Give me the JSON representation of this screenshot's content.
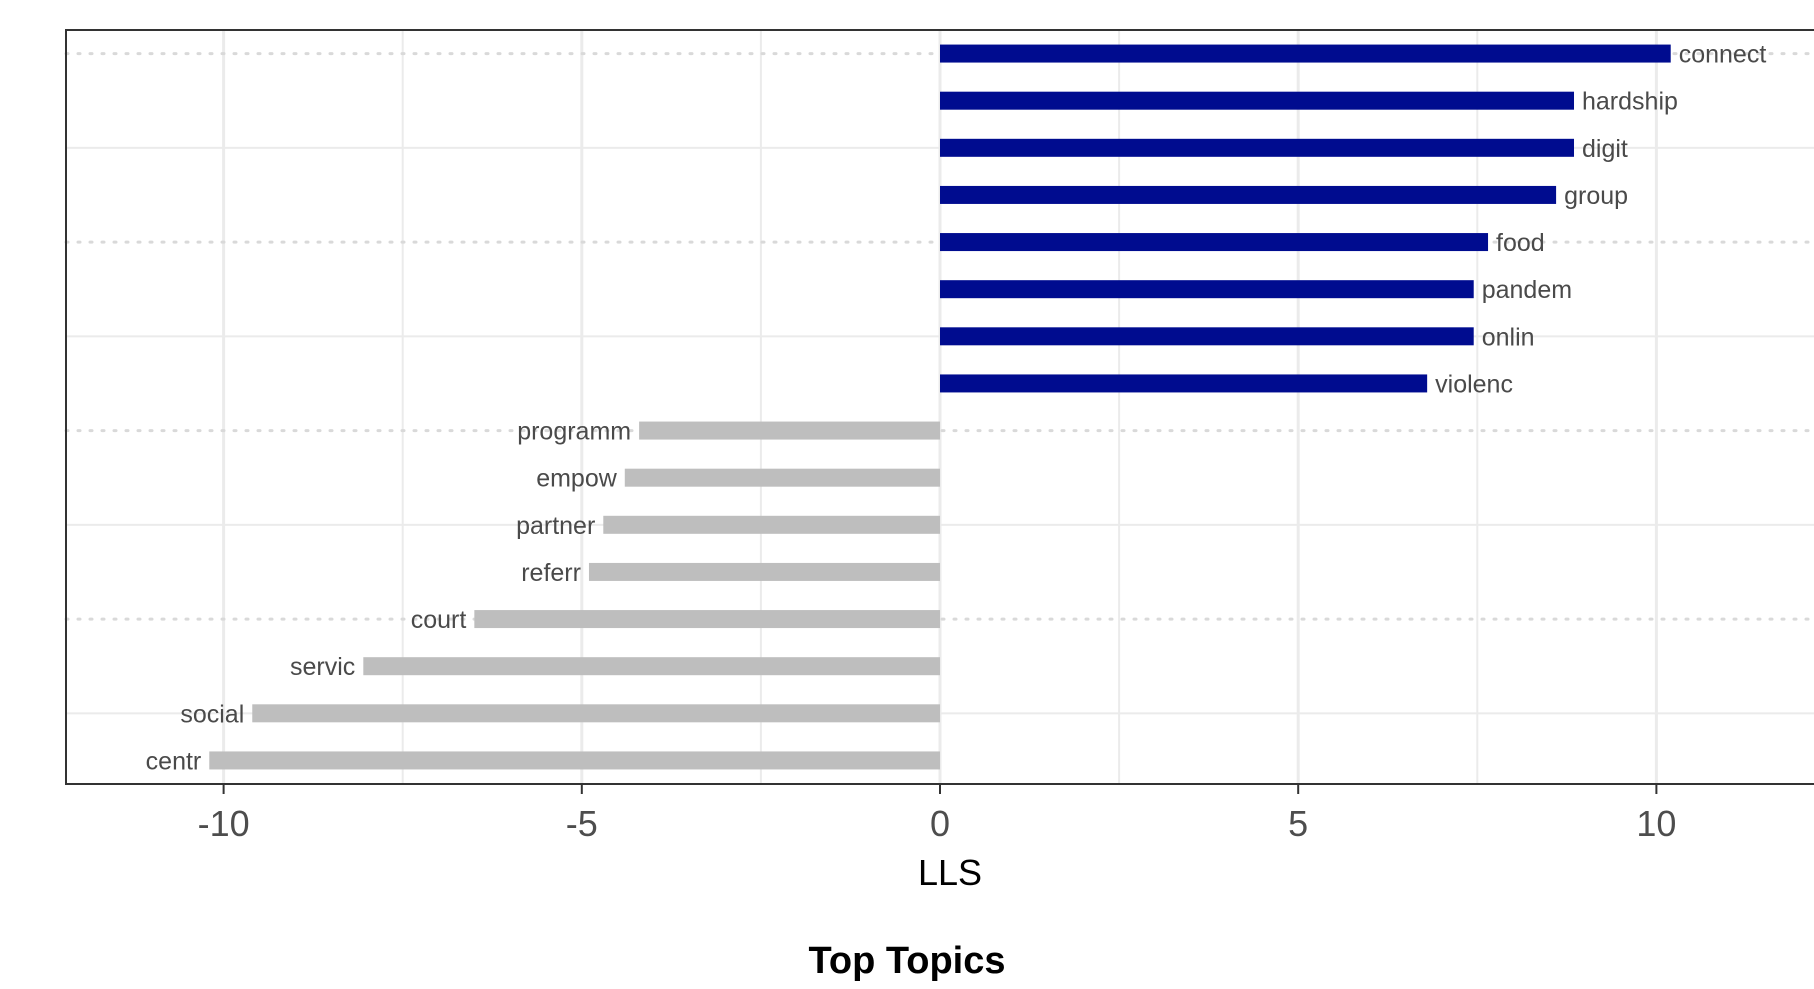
{
  "caption": "Top Topics",
  "chart_data": {
    "type": "bar",
    "orientation": "horizontal",
    "title": "",
    "xlabel": "LLS",
    "ylabel": "",
    "xlim": [
      -12.2,
      12.2
    ],
    "xticks": [
      -10,
      -5,
      0,
      5,
      10
    ],
    "xtick_labels": [
      "-10",
      "-5",
      "0",
      "5",
      "10"
    ],
    "grid": true,
    "legend": "none",
    "categories": [
      "connect",
      "hardship",
      "digit",
      "group",
      "food",
      "pandem",
      "onlin",
      "violenc",
      "programm",
      "empow",
      "partner",
      "referr",
      "court",
      "servic",
      "social",
      "centr"
    ],
    "values": [
      10.2,
      8.85,
      8.85,
      8.6,
      7.65,
      7.45,
      7.45,
      6.8,
      -4.2,
      -4.4,
      -4.7,
      -4.9,
      -6.5,
      -8.05,
      -9.6,
      -10.2
    ],
    "colors": {
      "positive": "#000c8f",
      "negative": "#bebebe",
      "panel_border": "#333333",
      "grid": "#ebebeb"
    }
  }
}
